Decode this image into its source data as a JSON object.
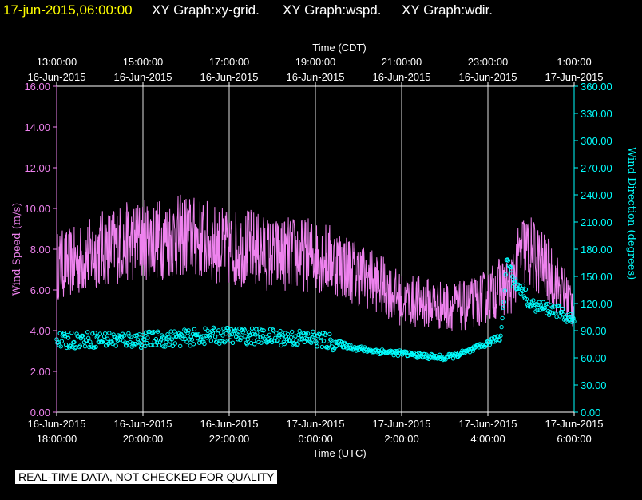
{
  "header": {
    "timestamp": "17-jun-2015,06:00:00",
    "graph_labels": [
      "XY Graph:xy-grid.",
      "XY Graph:wspd.",
      "XY Graph:wdir."
    ],
    "timestamp_color": "#ffff00",
    "label_color": "#ffffff"
  },
  "disclaimer": "REAL-TIME DATA, NOT CHECKED FOR QUALITY",
  "chart_data": {
    "type": "line",
    "x_top_title": "Time (CDT)",
    "x_bottom_title": "Time (UTC)",
    "x_range_hours_utc": [
      18,
      30
    ],
    "top_ticks": [
      {
        "time": "13:00:00",
        "date": "16-Jun-2015"
      },
      {
        "time": "15:00:00",
        "date": "16-Jun-2015"
      },
      {
        "time": "17:00:00",
        "date": "16-Jun-2015"
      },
      {
        "time": "19:00:00",
        "date": "16-Jun-2015"
      },
      {
        "time": "21:00:00",
        "date": "16-Jun-2015"
      },
      {
        "time": "23:00:00",
        "date": "16-Jun-2015"
      },
      {
        "time": "1:00:00",
        "date": "17-Jun-2015"
      }
    ],
    "bottom_ticks": [
      {
        "date": "16-Jun-2015",
        "time": "18:00:00"
      },
      {
        "date": "16-Jun-2015",
        "time": "20:00:00"
      },
      {
        "date": "16-Jun-2015",
        "time": "22:00:00"
      },
      {
        "date": "17-Jun-2015",
        "time": "0:00:00"
      },
      {
        "date": "17-Jun-2015",
        "time": "2:00:00"
      },
      {
        "date": "17-Jun-2015",
        "time": "4:00:00"
      },
      {
        "date": "17-Jun-2015",
        "time": "6:00:00"
      }
    ],
    "y_left": {
      "label": "Wind Speed (m/s)",
      "range": [
        0,
        16
      ],
      "ticks": [
        "0.00",
        "2.00",
        "4.00",
        "6.00",
        "8.00",
        "10.00",
        "12.00",
        "14.00",
        "16.00"
      ],
      "color": "#ee82ee"
    },
    "y_right": {
      "label": "Wind Direction (degrees)",
      "range": [
        0,
        360
      ],
      "ticks": [
        "0.00",
        "30.00",
        "60.00",
        "90.00",
        "120.00",
        "150.00",
        "180.00",
        "210.00",
        "240.00",
        "270.00",
        "300.00",
        "330.00",
        "360.00"
      ],
      "color": "#00ffff"
    },
    "grid": "vertical",
    "series": [
      {
        "name": "wspd",
        "axis": "left",
        "style": "line",
        "color": "#ee82ee",
        "x_hours_utc": [
          18.0,
          18.5,
          19.0,
          19.5,
          20.0,
          20.5,
          21.0,
          21.5,
          22.0,
          22.5,
          23.0,
          23.5,
          24.0,
          24.5,
          25.0,
          25.5,
          26.0,
          26.5,
          27.0,
          27.5,
          28.0,
          28.3,
          28.5,
          28.8,
          29.0,
          29.3,
          29.6,
          30.0
        ],
        "values": [
          7.2,
          7.4,
          8.0,
          8.3,
          8.5,
          8.5,
          8.7,
          8.4,
          8.0,
          8.1,
          7.7,
          7.8,
          7.7,
          7.4,
          6.8,
          6.3,
          5.5,
          5.4,
          5.2,
          5.2,
          5.7,
          6.2,
          6.0,
          8.0,
          7.8,
          7.2,
          6.3,
          5.2
        ]
      },
      {
        "name": "wdir",
        "axis": "right",
        "style": "markers",
        "color": "#00ffff",
        "x_hours_utc": [
          18.0,
          18.5,
          19.0,
          19.5,
          20.0,
          20.5,
          21.0,
          21.5,
          22.0,
          22.5,
          23.0,
          23.5,
          24.0,
          24.5,
          25.0,
          25.5,
          26.0,
          26.5,
          27.0,
          27.5,
          28.0,
          28.3,
          28.45,
          28.6,
          28.8,
          29.0,
          29.3,
          29.6,
          30.0
        ],
        "values": [
          78,
          80,
          80,
          80,
          80,
          81,
          82,
          84,
          85,
          84,
          83,
          82,
          81,
          76,
          70,
          67,
          65,
          62,
          60,
          66,
          76,
          84,
          174,
          142,
          136,
          118,
          115,
          112,
          100
        ]
      }
    ]
  }
}
